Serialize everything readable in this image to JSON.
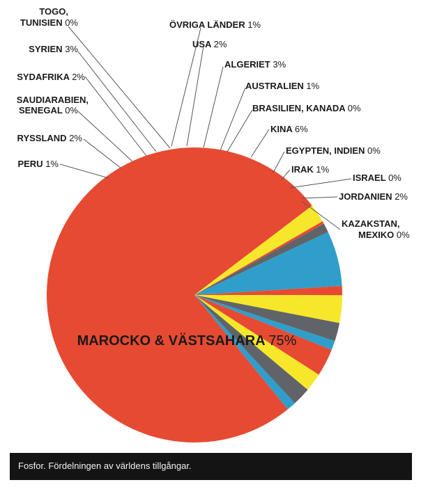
{
  "chart_data": {
    "type": "pie",
    "title": "",
    "colors": {
      "red": "#e64a32",
      "blue": "#2f9ecb",
      "gray": "#606469",
      "yellow": "#f7e72a"
    },
    "slices": [
      {
        "name": "Israel",
        "label": "ISRAEL",
        "pct_label": "0%",
        "value": 0.3,
        "color": "red"
      },
      {
        "name": "Irak",
        "label": "IRAK",
        "pct_label": "1%",
        "value": 1,
        "color": "gray"
      },
      {
        "name": "Egypten, Indien",
        "label": "EGYPTEN, INDIEN",
        "pct_label": "0%",
        "value": 0,
        "color": "gray"
      },
      {
        "name": "Kina",
        "label": "KINA",
        "pct_label": "6%",
        "value": 6,
        "color": "blue"
      },
      {
        "name": "Brasilien, Kanada",
        "label": "BRASILIEN, KANADA",
        "pct_label": "0%",
        "value": 0,
        "color": "blue"
      },
      {
        "name": "Australien",
        "label": "AUSTRALIEN",
        "pct_label": "1%",
        "value": 1,
        "color": "red"
      },
      {
        "name": "Algeriet",
        "label": "ALGERIET",
        "pct_label": "3%",
        "value": 3,
        "color": "yellow"
      },
      {
        "name": "USA",
        "label": "USA",
        "pct_label": "2%",
        "value": 2,
        "color": "gray"
      },
      {
        "name": "Övriga länder",
        "label": "ÖVRIGA LÄNDER",
        "pct_label": "1%",
        "value": 1,
        "color": "blue"
      },
      {
        "name": "Togo, Tunisien",
        "label": "TOGO, TUNISIEN",
        "pct_label": "0%",
        "value": 0,
        "color": "blue"
      },
      {
        "name": "Syrien",
        "label": "SYRIEN",
        "pct_label": "3%",
        "value": 3,
        "color": "red"
      },
      {
        "name": "Sydafrika",
        "label": "SYDAFRIKA",
        "pct_label": "2%",
        "value": 2,
        "color": "yellow"
      },
      {
        "name": "Saudiarabien, Senegal",
        "label": "SAUDIARABIEN, SENEGAL",
        "pct_label": "0%",
        "value": 0,
        "color": "yellow"
      },
      {
        "name": "Ryssland",
        "label": "RYSSLAND",
        "pct_label": "2%",
        "value": 2,
        "color": "gray"
      },
      {
        "name": "Peru",
        "label": "PERU",
        "pct_label": "1%",
        "value": 1,
        "color": "blue"
      },
      {
        "name": "Marocko & Västsahara",
        "label": "MAROCKO & VÄSTSAHARA",
        "pct_label": "75%",
        "value": 75,
        "color": "red"
      },
      {
        "name": "Kazakstan, Mexiko",
        "label": "KAZAKSTAN, MEXIKO",
        "pct_label": "0%",
        "value": 0,
        "color": "yellow"
      },
      {
        "name": "Jordanien",
        "label": "JORDANIEN",
        "pct_label": "2%",
        "value": 2,
        "color": "yellow"
      }
    ]
  },
  "labels": {
    "togo": {
      "line1": "TOGO,",
      "line2": "TUNISIEN",
      "pct": "0%"
    },
    "syrien": {
      "text": "SYRIEN",
      "pct": "3%"
    },
    "sydafrika": {
      "text": "SYDAFRIKA",
      "pct": "2%"
    },
    "saudiarabien": {
      "line1": "SAUDIARABIEN,",
      "line2": "SENEGAL",
      "pct": "0%"
    },
    "ryssland": {
      "text": "RYSSLAND",
      "pct": "2%"
    },
    "peru": {
      "text": "PERU",
      "pct": "1%"
    },
    "ovriga": {
      "text": "ÖVRIGA LÄNDER",
      "pct": "1%"
    },
    "usa": {
      "text": "USA",
      "pct": "2%"
    },
    "algeriet": {
      "text": "ALGERIET",
      "pct": "3%"
    },
    "australien": {
      "text": "AUSTRALIEN",
      "pct": "1%"
    },
    "brasilien": {
      "text": "BRASILIEN, KANADA",
      "pct": "0%"
    },
    "kina": {
      "text": "KINA",
      "pct": "6%"
    },
    "egypten": {
      "text": "EGYPTEN, INDIEN",
      "pct": "0%"
    },
    "irak": {
      "text": "IRAK",
      "pct": "1%"
    },
    "israel": {
      "text": "ISRAEL",
      "pct": "0%"
    },
    "jordanien": {
      "text": "JORDANIEN",
      "pct": "2%"
    },
    "kazakstan": {
      "line1": "KAZAKSTAN,",
      "line2": "MEXIKO",
      "pct": "0%"
    },
    "marocko": {
      "text": "MAROCKO & VÄSTSAHARA",
      "pct": "75%"
    }
  },
  "caption": "Fosfor. Fördelningen av världens tillgångar."
}
